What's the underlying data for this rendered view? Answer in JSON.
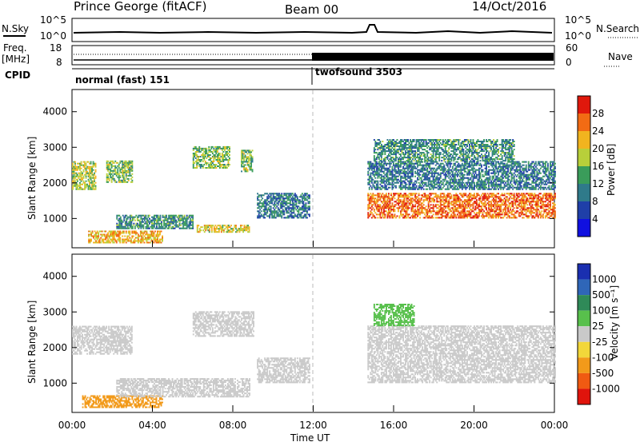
{
  "header": {
    "station": "Prince George (fitACF)",
    "beam": "Beam 00",
    "date": "14/Oct/2016"
  },
  "strip_panels": {
    "nsky_label": "N.Sky",
    "nsky_ticks": [
      "10^5",
      "10^0"
    ],
    "nsearch_label": "N.Search",
    "nsearch_ticks": [
      "10^5",
      "10^0"
    ],
    "freq_label": "Freq.",
    "freq_unit": "[MHz]",
    "freq_ticks": [
      "18",
      "8"
    ],
    "nave_label": "Nave",
    "nave_ticks": [
      "60",
      "0"
    ],
    "cpid_label": "CPID",
    "cpid_segments": [
      "normal (fast) 151",
      "twofsound 3503"
    ]
  },
  "time_axis": {
    "ticks": [
      "00:00",
      "04:00",
      "08:00",
      "12:00",
      "16:00",
      "20:00",
      "00:00"
    ],
    "xlabel": "Time UT"
  },
  "colors": {
    "power_scale": [
      "#1010e0",
      "#1f3fa8",
      "#2f7a8a",
      "#3a9c5a",
      "#b8cf3a",
      "#f1b41f",
      "#f26b14",
      "#e0180c"
    ],
    "velocity_scale": [
      "#1a2fb0",
      "#2f66b8",
      "#2f8a58",
      "#58c04c",
      "#c9c9c9",
      "#f2d73a",
      "#f29a1a",
      "#f05a12",
      "#e0140c"
    ]
  },
  "chart_data": [
    {
      "type": "heatmap",
      "name": "Power",
      "ylabel": "Slant Range [km]",
      "yticks": [
        "1000",
        "2000",
        "3000",
        "4000"
      ],
      "ylim": [
        200,
        4600
      ],
      "xlim": [
        0,
        24
      ],
      "colorbar": {
        "label": "Power [dB]",
        "ticks": [
          "4",
          "8",
          "12",
          "16",
          "20",
          "24",
          "28"
        ],
        "range": [
          0,
          32
        ]
      },
      "echo_regions": [
        {
          "t0": 0.0,
          "t1": 1.2,
          "r0": 1800,
          "r1": 2600,
          "level": 18
        },
        {
          "t0": 1.7,
          "t1": 3.0,
          "r0": 2000,
          "r1": 2600,
          "level": 16
        },
        {
          "t0": 0.8,
          "t1": 4.5,
          "r0": 300,
          "r1": 650,
          "level": 22
        },
        {
          "t0": 2.2,
          "t1": 6.0,
          "r0": 700,
          "r1": 1100,
          "level": 12
        },
        {
          "t0": 6.0,
          "t1": 7.8,
          "r0": 2400,
          "r1": 3000,
          "level": 16
        },
        {
          "t0": 8.4,
          "t1": 9.0,
          "r0": 2300,
          "r1": 2900,
          "level": 16
        },
        {
          "t0": 6.2,
          "t1": 8.8,
          "r0": 600,
          "r1": 800,
          "level": 20
        },
        {
          "t0": 9.2,
          "t1": 11.8,
          "r0": 1000,
          "r1": 1700,
          "level": 10
        },
        {
          "t0": 14.7,
          "t1": 24.0,
          "r0": 1000,
          "r1": 1700,
          "level": 26
        },
        {
          "t0": 14.7,
          "t1": 24.0,
          "r0": 1800,
          "r1": 2600,
          "level": 10
        },
        {
          "t0": 15.0,
          "t1": 22.0,
          "r0": 2600,
          "r1": 3200,
          "level": 12
        }
      ]
    },
    {
      "type": "heatmap",
      "name": "Velocity",
      "ylabel": "Slant Range [km]",
      "yticks": [
        "1000",
        "2000",
        "3000",
        "4000"
      ],
      "ylim": [
        200,
        4600
      ],
      "xlim": [
        0,
        24
      ],
      "colorbar": {
        "label": "Velocity [m s⁻¹]",
        "ticks": [
          "1000",
          "500",
          "100",
          "25",
          "-25",
          "-100",
          "-500",
          "-1000"
        ]
      },
      "echo_regions": [
        {
          "t0": 0.0,
          "t1": 3.0,
          "r0": 1800,
          "r1": 2600,
          "level": 0
        },
        {
          "t0": 0.5,
          "t1": 4.5,
          "r0": 300,
          "r1": 650,
          "level": -150
        },
        {
          "t0": 2.2,
          "t1": 8.8,
          "r0": 600,
          "r1": 1100,
          "level": 0
        },
        {
          "t0": 6.0,
          "t1": 9.0,
          "r0": 2300,
          "r1": 3000,
          "level": 0
        },
        {
          "t0": 9.2,
          "t1": 11.8,
          "r0": 1000,
          "r1": 1700,
          "level": 0
        },
        {
          "t0": 14.7,
          "t1": 24.0,
          "r0": 1000,
          "r1": 2600,
          "level": 0
        },
        {
          "t0": 15.0,
          "t1": 17.0,
          "r0": 2600,
          "r1": 3200,
          "level": 60
        }
      ]
    }
  ]
}
